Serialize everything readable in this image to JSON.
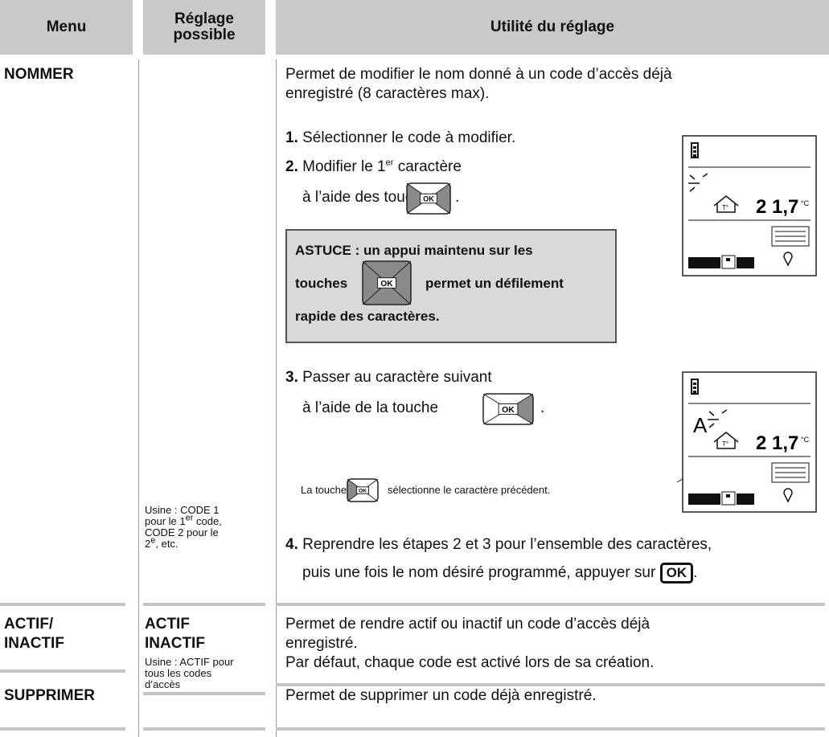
{
  "header": {
    "menu": "Menu",
    "reglage": "Réglage possible",
    "utilite": "Utilité du réglage"
  },
  "rows": [
    {
      "menu": "NOMMER",
      "reglage": {
        "text_1": "Usine : CODE 1",
        "text_2": "pour le 1",
        "sup_1": "er",
        "text_3": " code,",
        "text_4": "CODE 2 pour le",
        "text_5": "2",
        "sup_2": "e",
        "text_6": ", etc."
      },
      "utilite": {
        "intro_1": "Permet de modifier le nom donné à un code d’accès déjà",
        "intro_2": "enregistré (8 caractères max).",
        "step1": {
          "num": "1.",
          "text": " Sélectionner le code à modifier."
        },
        "step2": {
          "num": "2.",
          "text_1": " Modifier le 1",
          "sup": "er",
          "text_2": " caractère",
          "text_3": "à l’aide des touches",
          "text_4": "."
        },
        "astuce": {
          "text_1": "ASTUCE : un appui maintenu sur les",
          "text_2": "touches",
          "text_3": "permet un défilement",
          "text_4": "rapide des caractères."
        },
        "step3": {
          "num": "3.",
          "text_1": " Passer au caractère suivant",
          "text_2": "à l’aide de la touche",
          "text_3": "."
        },
        "note": {
          "text_1": "La touche",
          "text_2": "sélectionne le caractère précédent."
        },
        "step4": {
          "num": "4.",
          "text_1": " Reprendre les étapes 2 et 3 pour l’ensemble des caractères,",
          "text_2": "puis une fois le nom désiré programmé, appuyer sur",
          "button": "OK",
          "text_3": "."
        },
        "key_label": "OK",
        "lcd_1": {
          "mode": "T°",
          "temp": "2 1,7",
          "unit": "°C"
        },
        "lcd_2": {
          "char": "A",
          "mode": "T°",
          "temp": "2 1,7",
          "unit": "°C"
        }
      }
    },
    {
      "menu_1": "ACTIF/",
      "menu_2": "INACTIF",
      "reglage": {
        "option_1": "ACTIF",
        "option_2": "INACTIF",
        "text_1": "Usine : ACTIF pour",
        "text_2": "tous les codes",
        "text_3": "d’accès"
      },
      "utilite": {
        "text_1": "Permet de rendre actif ou inactif un code d’accès déjà",
        "text_2": "enregistré.",
        "text_3": "Par défaut, chaque code est activé lors de sa création."
      }
    },
    {
      "menu": "SUPPRIMER",
      "utilite": "Permet de supprimer un code déjà enregistré."
    }
  ]
}
